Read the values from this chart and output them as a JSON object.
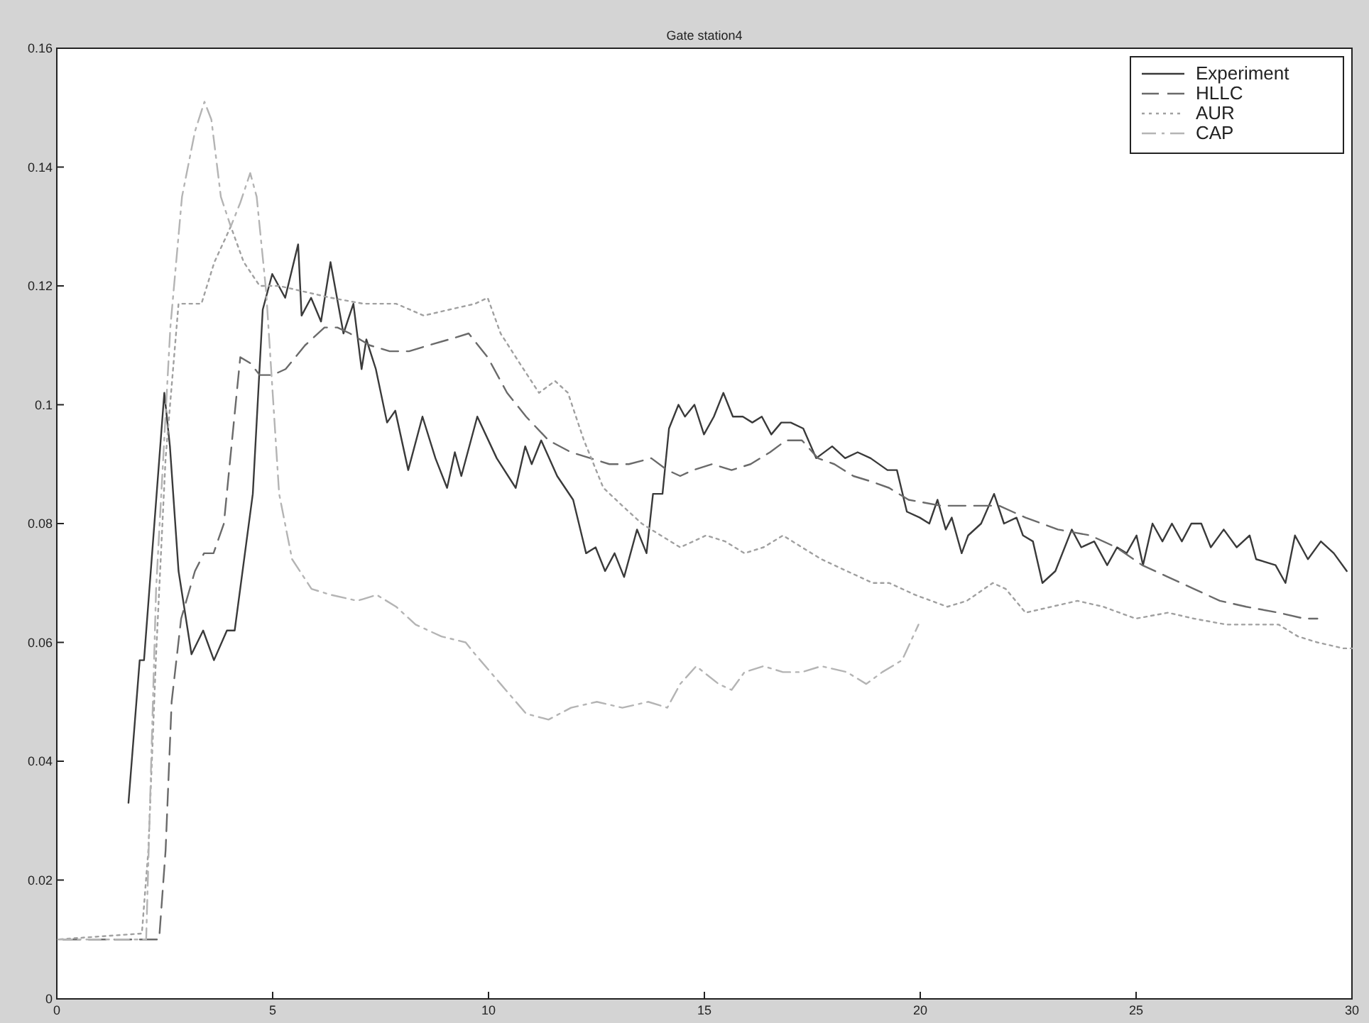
{
  "chart_data": {
    "type": "line",
    "title": "Gate station4",
    "xlim": [
      0,
      30
    ],
    "xticks": [
      0,
      5,
      10,
      15,
      20,
      25,
      30
    ],
    "ylim": [
      0,
      0.16
    ],
    "yticks": [
      0,
      0.02,
      0.04,
      0.06,
      0.08,
      0.1,
      0.12,
      0.14,
      0.16
    ],
    "grid": false,
    "legend": "top right",
    "marker": "none",
    "series": [
      {
        "name": "Experiment",
        "color": "#3a3a3a",
        "line_style": "solid",
        "x": [
          1.66,
          1.92,
          2.02,
          2.49,
          2.62,
          2.82,
          3.12,
          3.39,
          3.64,
          3.94,
          4.12,
          4.54,
          4.77,
          4.99,
          5.29,
          5.59,
          5.67,
          5.89,
          6.12,
          6.34,
          6.64,
          6.87,
          7.06,
          7.17,
          7.39,
          7.65,
          7.84,
          8.14,
          8.47,
          8.77,
          9.04,
          9.22,
          9.37,
          9.74,
          10.19,
          10.63,
          10.85,
          11.0,
          11.22,
          11.59,
          11.96,
          12.26,
          12.48,
          12.7,
          12.92,
          13.14,
          13.44,
          13.66,
          13.81,
          14.03,
          14.18,
          14.4,
          14.55,
          14.77,
          14.99,
          15.22,
          15.44,
          15.66,
          15.89,
          16.11,
          16.33,
          16.55,
          16.78,
          17.0,
          17.29,
          17.59,
          17.96,
          18.26,
          18.55,
          18.85,
          19.24,
          19.46,
          19.69,
          19.99,
          20.21,
          20.4,
          20.59,
          20.73,
          20.96,
          21.11,
          21.41,
          21.71,
          21.94,
          22.23,
          22.38,
          22.61,
          22.83,
          23.13,
          23.51,
          23.73,
          24.03,
          24.33,
          24.56,
          24.78,
          25.01,
          25.16,
          25.38,
          25.61,
          25.83,
          26.06,
          26.28,
          26.51,
          26.73,
          27.03,
          27.33,
          27.63,
          27.78,
          28.23,
          28.46,
          28.68,
          28.98,
          29.28,
          29.58,
          29.88
        ],
        "values": [
          0.033,
          0.057,
          0.057,
          0.102,
          0.093,
          0.072,
          0.058,
          0.062,
          0.057,
          0.062,
          0.062,
          0.085,
          0.116,
          0.122,
          0.118,
          0.127,
          0.115,
          0.118,
          0.114,
          0.124,
          0.112,
          0.117,
          0.106,
          0.111,
          0.106,
          0.097,
          0.099,
          0.089,
          0.098,
          0.091,
          0.086,
          0.092,
          0.088,
          0.098,
          0.091,
          0.086,
          0.093,
          0.09,
          0.094,
          0.088,
          0.084,
          0.075,
          0.076,
          0.072,
          0.075,
          0.071,
          0.079,
          0.075,
          0.085,
          0.085,
          0.096,
          0.1,
          0.098,
          0.1,
          0.095,
          0.098,
          0.102,
          0.098,
          0.098,
          0.097,
          0.098,
          0.095,
          0.097,
          0.097,
          0.096,
          0.091,
          0.093,
          0.091,
          0.092,
          0.091,
          0.089,
          0.089,
          0.082,
          0.081,
          0.08,
          0.084,
          0.079,
          0.081,
          0.075,
          0.078,
          0.08,
          0.085,
          0.08,
          0.081,
          0.078,
          0.077,
          0.07,
          0.072,
          0.079,
          0.076,
          0.077,
          0.073,
          0.076,
          0.075,
          0.078,
          0.073,
          0.08,
          0.077,
          0.08,
          0.077,
          0.08,
          0.08,
          0.076,
          0.079,
          0.076,
          0.078,
          0.074,
          0.073,
          0.07,
          0.078,
          0.074,
          0.077,
          0.075,
          0.072
        ]
      },
      {
        "name": "HLLC",
        "color": "#6a6a6a",
        "line_style": "dashed",
        "x": [
          0,
          2.37,
          2.52,
          2.66,
          2.88,
          3.2,
          3.41,
          3.63,
          3.87,
          4.1,
          4.25,
          4.48,
          4.7,
          5.0,
          5.3,
          5.75,
          6.2,
          6.5,
          6.79,
          7.25,
          7.71,
          8.16,
          8.61,
          9.09,
          9.54,
          9.98,
          10.43,
          10.87,
          11.39,
          11.91,
          12.36,
          12.8,
          13.25,
          13.77,
          14.14,
          14.44,
          14.74,
          15.18,
          15.63,
          16.07,
          16.52,
          16.89,
          17.26,
          17.63,
          18.01,
          18.45,
          18.9,
          19.28,
          19.73,
          20.48,
          21.23,
          21.83,
          22.44,
          23.19,
          23.94,
          24.54,
          25.14,
          25.74,
          26.34,
          26.94,
          27.55,
          28.3,
          28.9,
          29.2
        ],
        "values": [
          0.01,
          0.01,
          0.025,
          0.05,
          0.064,
          0.072,
          0.075,
          0.075,
          0.08,
          0.097,
          0.108,
          0.107,
          0.105,
          0.105,
          0.106,
          0.11,
          0.113,
          0.113,
          0.112,
          0.11,
          0.109,
          0.109,
          0.11,
          0.111,
          0.112,
          0.108,
          0.102,
          0.098,
          0.094,
          0.092,
          0.091,
          0.09,
          0.09,
          0.091,
          0.089,
          0.088,
          0.089,
          0.09,
          0.089,
          0.09,
          0.092,
          0.094,
          0.094,
          0.091,
          0.09,
          0.088,
          0.087,
          0.086,
          0.084,
          0.083,
          0.083,
          0.083,
          0.081,
          0.079,
          0.078,
          0.076,
          0.073,
          0.071,
          0.069,
          0.067,
          0.066,
          0.065,
          0.064,
          0.064
        ]
      },
      {
        "name": "AUR",
        "color": "#a0a0a0",
        "line_style": "dotted",
        "x": [
          0,
          1.97,
          2.12,
          2.3,
          2.52,
          2.82,
          3.05,
          3.35,
          3.65,
          4.03,
          4.33,
          4.7,
          5.15,
          5.75,
          6.35,
          7.1,
          7.86,
          8.5,
          9.09,
          9.69,
          9.98,
          10.28,
          10.72,
          11.17,
          11.54,
          11.84,
          12.21,
          12.66,
          13.1,
          13.55,
          13.99,
          14.44,
          15.04,
          15.48,
          15.93,
          16.37,
          16.82,
          17.26,
          17.71,
          18.3,
          18.9,
          19.28,
          19.88,
          20.63,
          21.08,
          21.68,
          21.98,
          22.44,
          23.04,
          23.64,
          24.24,
          24.99,
          25.74,
          26.34,
          27.09,
          27.84,
          28.3,
          28.75,
          29.2,
          29.8,
          30.0
        ],
        "values": [
          0.01,
          0.011,
          0.025,
          0.058,
          0.091,
          0.117,
          0.117,
          0.117,
          0.124,
          0.13,
          0.124,
          0.12,
          0.12,
          0.119,
          0.118,
          0.117,
          0.117,
          0.115,
          0.116,
          0.117,
          0.118,
          0.112,
          0.107,
          0.102,
          0.104,
          0.102,
          0.094,
          0.086,
          0.083,
          0.08,
          0.078,
          0.076,
          0.078,
          0.077,
          0.075,
          0.076,
          0.078,
          0.076,
          0.074,
          0.072,
          0.07,
          0.07,
          0.068,
          0.066,
          0.067,
          0.07,
          0.069,
          0.065,
          0.066,
          0.067,
          0.066,
          0.064,
          0.065,
          0.064,
          0.063,
          0.063,
          0.063,
          0.061,
          0.06,
          0.059,
          0.059
        ]
      },
      {
        "name": "CAP",
        "color": "#b4b4b4",
        "line_style": "dashdot",
        "x": [
          0,
          2.07,
          2.3,
          2.63,
          2.9,
          3.2,
          3.42,
          3.58,
          3.8,
          4.03,
          4.25,
          4.48,
          4.63,
          4.85,
          5.0,
          5.15,
          5.45,
          5.9,
          6.35,
          6.96,
          7.41,
          7.86,
          8.31,
          8.91,
          9.47,
          9.69,
          10.28,
          10.87,
          11.39,
          11.91,
          12.51,
          13.1,
          13.7,
          14.14,
          14.44,
          14.81,
          15.33,
          15.63,
          15.93,
          16.37,
          16.82,
          17.26,
          17.71,
          18.3,
          18.75,
          19.12,
          19.58,
          19.96
        ],
        "values": [
          0.01,
          0.01,
          0.069,
          0.113,
          0.135,
          0.146,
          0.151,
          0.148,
          0.135,
          0.13,
          0.134,
          0.139,
          0.135,
          0.119,
          0.102,
          0.085,
          0.074,
          0.069,
          0.068,
          0.067,
          0.068,
          0.066,
          0.063,
          0.061,
          0.06,
          0.058,
          0.053,
          0.048,
          0.047,
          0.049,
          0.05,
          0.049,
          0.05,
          0.049,
          0.053,
          0.056,
          0.053,
          0.052,
          0.055,
          0.056,
          0.055,
          0.055,
          0.056,
          0.055,
          0.053,
          0.055,
          0.057,
          0.063
        ]
      }
    ]
  }
}
